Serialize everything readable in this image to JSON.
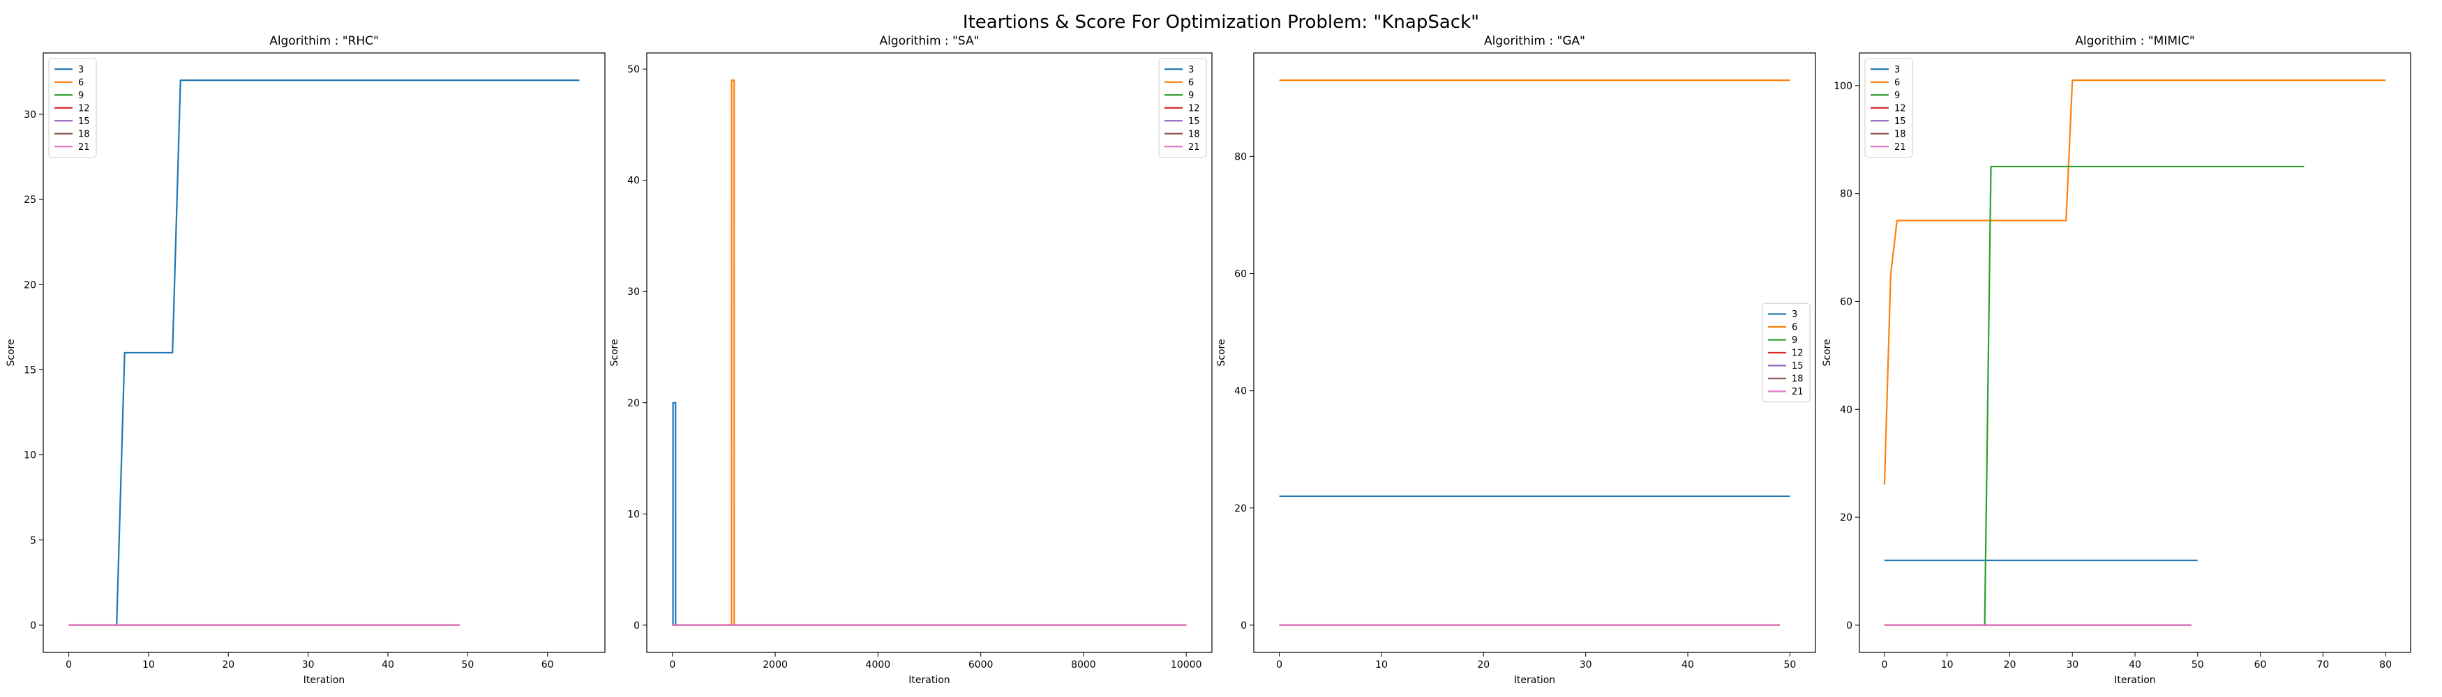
{
  "figure": {
    "title": "Iteartions & Score For Optimization Problem: \"KnapSack\""
  },
  "chart_data": [
    {
      "type": "line",
      "title": "Algorithim : \"RHC\"",
      "xlabel": "Iteration",
      "ylabel": "Score",
      "xlim": [
        -3.2,
        67.2
      ],
      "ylim": [
        -1.6,
        33.6
      ],
      "xticks": [
        0,
        10,
        20,
        30,
        40,
        50,
        60
      ],
      "yticks": [
        0,
        5,
        10,
        15,
        20,
        25,
        30
      ],
      "legend_position": "upper left",
      "series": [
        {
          "name": "3",
          "color": "#1f77b4",
          "points": [
            [
              0,
              0
            ],
            [
              6,
              0
            ],
            [
              7,
              16
            ],
            [
              13,
              16
            ],
            [
              14,
              32
            ],
            [
              64,
              32
            ]
          ]
        },
        {
          "name": "6",
          "color": "#ff7f0e",
          "points": [
            [
              0,
              0
            ],
            [
              49,
              0
            ]
          ]
        },
        {
          "name": "9",
          "color": "#2ca02c",
          "points": [
            [
              0,
              0
            ],
            [
              49,
              0
            ]
          ]
        },
        {
          "name": "12",
          "color": "#d62728",
          "points": [
            [
              0,
              0
            ],
            [
              49,
              0
            ]
          ]
        },
        {
          "name": "15",
          "color": "#9467bd",
          "points": [
            [
              0,
              0
            ],
            [
              49,
              0
            ]
          ]
        },
        {
          "name": "18",
          "color": "#8c564b",
          "points": [
            [
              0,
              0
            ],
            [
              49,
              0
            ]
          ]
        },
        {
          "name": "21",
          "color": "#e377c2",
          "points": [
            [
              0,
              0
            ],
            [
              49,
              0
            ]
          ]
        }
      ]
    },
    {
      "type": "line",
      "title": "Algorithim : \"SA\"",
      "xlabel": "Iteration",
      "ylabel": "Score",
      "xlim": [
        -500,
        10500
      ],
      "ylim": [
        -2.45,
        51.45
      ],
      "xticks": [
        0,
        2000,
        4000,
        6000,
        8000,
        10000
      ],
      "yticks": [
        0,
        10,
        20,
        30,
        40,
        50
      ],
      "legend_position": "upper right",
      "series": [
        {
          "name": "3",
          "color": "#1f77b4",
          "points": [
            [
              0,
              0
            ],
            [
              10,
              0
            ],
            [
              11,
              20
            ],
            [
              60,
              20
            ],
            [
              61,
              0
            ],
            [
              10000,
              0
            ]
          ]
        },
        {
          "name": "6",
          "color": "#ff7f0e",
          "points": [
            [
              0,
              0
            ],
            [
              1150,
              0
            ],
            [
              1151,
              49
            ],
            [
              1200,
              49
            ],
            [
              1201,
              0
            ],
            [
              10000,
              0
            ]
          ]
        },
        {
          "name": "9",
          "color": "#2ca02c",
          "points": [
            [
              0,
              0
            ],
            [
              10000,
              0
            ]
          ]
        },
        {
          "name": "12",
          "color": "#d62728",
          "points": [
            [
              0,
              0
            ],
            [
              10000,
              0
            ]
          ]
        },
        {
          "name": "15",
          "color": "#9467bd",
          "points": [
            [
              0,
              0
            ],
            [
              10000,
              0
            ]
          ]
        },
        {
          "name": "18",
          "color": "#8c564b",
          "points": [
            [
              0,
              0
            ],
            [
              10000,
              0
            ]
          ]
        },
        {
          "name": "21",
          "color": "#e377c2",
          "points": [
            [
              0,
              0
            ],
            [
              10000,
              0
            ]
          ]
        }
      ]
    },
    {
      "type": "line",
      "title": "Algorithim : \"GA\"",
      "xlabel": "Iteration",
      "ylabel": "Score",
      "xlim": [
        -2.5,
        52.5
      ],
      "ylim": [
        -4.65,
        97.65
      ],
      "xticks": [
        0,
        10,
        20,
        30,
        40,
        50
      ],
      "yticks": [
        0,
        20,
        40,
        60,
        80
      ],
      "legend_position": "center right",
      "series": [
        {
          "name": "3",
          "color": "#1f77b4",
          "points": [
            [
              0,
              22
            ],
            [
              50,
              22
            ]
          ]
        },
        {
          "name": "6",
          "color": "#ff7f0e",
          "points": [
            [
              0,
              93
            ],
            [
              50,
              93
            ]
          ]
        },
        {
          "name": "9",
          "color": "#2ca02c",
          "points": [
            [
              0,
              0
            ],
            [
              49,
              0
            ]
          ]
        },
        {
          "name": "12",
          "color": "#d62728",
          "points": [
            [
              0,
              0
            ],
            [
              49,
              0
            ]
          ]
        },
        {
          "name": "15",
          "color": "#9467bd",
          "points": [
            [
              0,
              0
            ],
            [
              49,
              0
            ]
          ]
        },
        {
          "name": "18",
          "color": "#8c564b",
          "points": [
            [
              0,
              0
            ],
            [
              49,
              0
            ]
          ]
        },
        {
          "name": "21",
          "color": "#e377c2",
          "points": [
            [
              0,
              0
            ],
            [
              49,
              0
            ]
          ]
        }
      ]
    },
    {
      "type": "line",
      "title": "Algorithim : \"MIMIC\"",
      "xlabel": "Iteration",
      "ylabel": "Score",
      "xlim": [
        -4,
        84
      ],
      "ylim": [
        -5.05,
        106.05
      ],
      "xticks": [
        0,
        10,
        20,
        30,
        40,
        50,
        60,
        70,
        80
      ],
      "yticks": [
        0,
        20,
        40,
        60,
        80,
        100
      ],
      "legend_position": "upper left",
      "series": [
        {
          "name": "3",
          "color": "#1f77b4",
          "points": [
            [
              0,
              12
            ],
            [
              50,
              12
            ]
          ]
        },
        {
          "name": "6",
          "color": "#ff7f0e",
          "points": [
            [
              0,
              26
            ],
            [
              1,
              65
            ],
            [
              2,
              75
            ],
            [
              29,
              75
            ],
            [
              30,
              101
            ],
            [
              80,
              101
            ]
          ]
        },
        {
          "name": "9",
          "color": "#2ca02c",
          "points": [
            [
              0,
              0
            ],
            [
              16,
              0
            ],
            [
              17,
              85
            ],
            [
              67,
              85
            ]
          ]
        },
        {
          "name": "12",
          "color": "#d62728",
          "points": [
            [
              0,
              0
            ],
            [
              49,
              0
            ]
          ]
        },
        {
          "name": "15",
          "color": "#9467bd",
          "points": [
            [
              0,
              0
            ],
            [
              49,
              0
            ]
          ]
        },
        {
          "name": "18",
          "color": "#8c564b",
          "points": [
            [
              0,
              0
            ],
            [
              49,
              0
            ]
          ]
        },
        {
          "name": "21",
          "color": "#e377c2",
          "points": [
            [
              0,
              0
            ],
            [
              49,
              0
            ]
          ]
        }
      ]
    }
  ]
}
